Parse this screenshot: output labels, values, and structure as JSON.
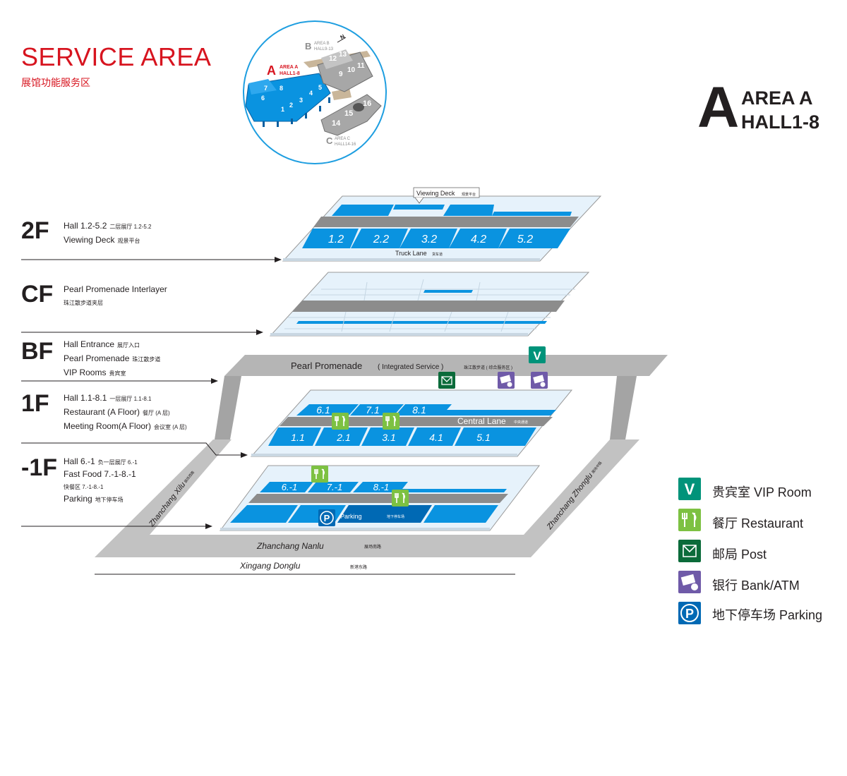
{
  "header": {
    "title": "SERVICE AREA",
    "subtitle": "展馆功能服务区"
  },
  "area_badge": {
    "letter": "A",
    "line1": "AREA A",
    "line2": "HALL1-8"
  },
  "overview": {
    "area_a": {
      "letter": "A",
      "line1": "AREA A",
      "line2": "HALL1-8"
    },
    "area_b": {
      "letter": "B",
      "line1": "AREA B",
      "line2": "HALL9-13"
    },
    "area_c": {
      "letter": "C",
      "line1": "AREA C",
      "line2": "HALL14-16"
    },
    "north": "N",
    "halls_a": [
      "1",
      "2",
      "3",
      "4",
      "5",
      "6",
      "7",
      "8"
    ],
    "halls_b": [
      "9",
      "10",
      "11",
      "12",
      "13"
    ],
    "halls_c": [
      "14",
      "15",
      "16"
    ]
  },
  "floors": [
    {
      "code": "2F",
      "lines": [
        {
          "en": "Hall 1.2-5.2",
          "cn": "二层展厅 1.2-5.2"
        },
        {
          "en": "Viewing Deck",
          "cn": "观景平台"
        }
      ]
    },
    {
      "code": "CF",
      "lines": [
        {
          "en": "Pearl Promenade Interlayer",
          "cn": ""
        },
        {
          "en": "",
          "cn": "珠江散步道夹层"
        }
      ]
    },
    {
      "code": "BF",
      "lines": [
        {
          "en": "Hall Entrance",
          "cn": "展厅入口"
        },
        {
          "en": "Pearl Promenade",
          "cn": "珠江散步道"
        },
        {
          "en": "VIP Rooms",
          "cn": "贵宾室"
        }
      ]
    },
    {
      "code": "1F",
      "lines": [
        {
          "en": "Hall 1.1-8.1",
          "cn": "一层展厅 1.1-8.1"
        },
        {
          "en": "Restaurant (A Floor)",
          "cn": "餐厅 (A 层)"
        },
        {
          "en": "Meeting Room(A Floor)",
          "cn": "会议室 (A 层)"
        }
      ]
    },
    {
      "code": "-1F",
      "lines": [
        {
          "en": "Hall 6.-1",
          "cn": "负一层展厅 6.-1"
        },
        {
          "en": "Fast Food 7.-1-8.-1",
          "cn": ""
        },
        {
          "en": "",
          "cn": "快餐区 7.-1-8.-1"
        },
        {
          "en": "Parking",
          "cn": "地下停车场"
        }
      ]
    }
  ],
  "map": {
    "viewing_deck": "Viewing Deck",
    "viewing_deck_cn": "观景平台",
    "halls_2f": [
      "1.2",
      "2.2",
      "3.2",
      "4.2",
      "5.2"
    ],
    "truck_lane": "Truck Lane",
    "truck_lane_cn": "货车道",
    "pearl_promenade": "Pearl Promenade",
    "integrated_service": "( Integrated Service )",
    "pearl_promenade_cn": "珠江散步道 ( 综合服务区 )",
    "halls_1f_top": [
      "6.1",
      "7.1",
      "8.1"
    ],
    "halls_1f_bottom": [
      "1.1",
      "2.1",
      "3.1",
      "4.1",
      "5.1"
    ],
    "central_lane": "Central Lane",
    "central_lane_cn": "中央通道",
    "halls_b1_top": [
      "6.-1",
      "7.-1",
      "8.-1"
    ],
    "parking": "Parking",
    "parking_cn": "地下停车场",
    "road_left": "Zhanchang Xilu",
    "road_left_cn": "展场西路",
    "road_right": "Zhanchang Zhonglu",
    "road_right_cn": "展场中路",
    "road_bottom": "Zhanchang Nanlu",
    "road_bottom_cn": "展场南路",
    "road_outer": "Xingang Donglu",
    "road_outer_cn": "新港东路"
  },
  "legend": [
    {
      "icon": "vip-icon",
      "symbol": "V",
      "color": "#00937a",
      "label": "贵宾室 VIP Room"
    },
    {
      "icon": "restaurant-icon",
      "symbol": "fork-knife",
      "color": "#7dc142",
      "label": "餐厅 Restaurant"
    },
    {
      "icon": "post-icon",
      "symbol": "envelope",
      "color": "#0b6b3a",
      "label": "邮局 Post"
    },
    {
      "icon": "bank-icon",
      "symbol": "banknote",
      "color": "#6f5aa8",
      "label": "银行 Bank/ATM"
    },
    {
      "icon": "parking-icon",
      "symbol": "P",
      "color": "#0069b4",
      "label": "地下停车场 Parking"
    }
  ],
  "colors": {
    "accent_red": "#d7141f",
    "hall_blue": "#0a93e0",
    "deep_blue": "#0069b4",
    "road_gray": "#b5b5b5",
    "lane_gray": "#8c8c8c",
    "floor_bg": "#e6f2fb"
  }
}
